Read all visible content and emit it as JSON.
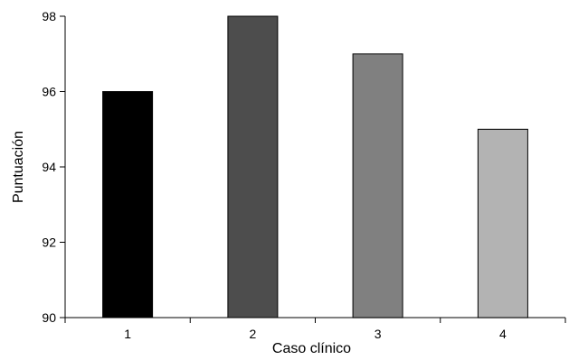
{
  "chart_data": {
    "type": "bar",
    "title": "",
    "xlabel": "Caso clínico",
    "ylabel": "Puntuación",
    "categories": [
      "1",
      "2",
      "3",
      "4"
    ],
    "values": [
      96,
      98,
      97,
      95
    ],
    "ylim": [
      90,
      98
    ],
    "yticks": [
      "90",
      "92",
      "94",
      "96",
      "98"
    ],
    "grid": false,
    "legend": "none",
    "bar_colors": [
      "#000000",
      "#4d4d4d",
      "#808080",
      "#b3b3b3"
    ],
    "bar_outline": "#000000"
  }
}
